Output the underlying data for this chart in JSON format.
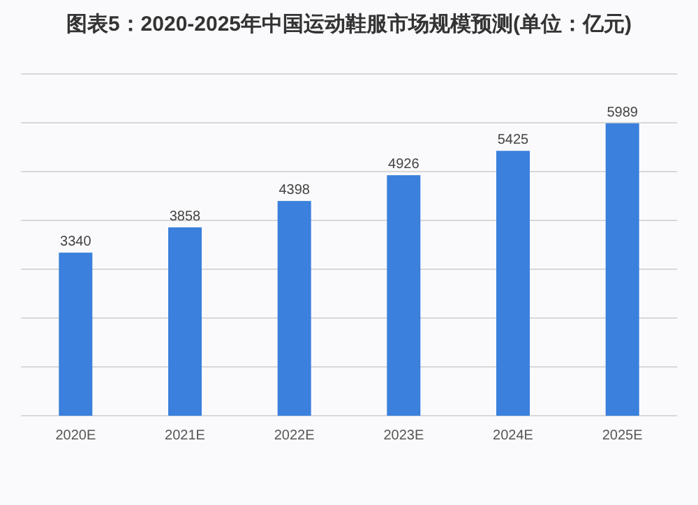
{
  "chart_data": {
    "type": "bar",
    "title": "图表5：2020-2025年中国运动鞋服市场规模预测(单位：亿元)",
    "categories": [
      "2020E",
      "2021E",
      "2022E",
      "2023E",
      "2024E",
      "2025E"
    ],
    "values": [
      3340,
      3858,
      4398,
      4926,
      5425,
      5989
    ],
    "color": "#3a80dc",
    "ylim": [
      0,
      7000
    ],
    "yticks": [
      {
        "value": 0,
        "label": null
      },
      {
        "value": 1000,
        "label": null
      },
      {
        "value": 2000,
        "label": null
      },
      {
        "value": 3000,
        "label": null
      },
      {
        "value": 4000,
        "label": null
      },
      {
        "value": 5000,
        "label": null
      },
      {
        "value": 6000,
        "label": null
      },
      {
        "value": 7000,
        "label": null
      }
    ],
    "grid": "y",
    "tick_labels": "x",
    "data_labels": true
  }
}
